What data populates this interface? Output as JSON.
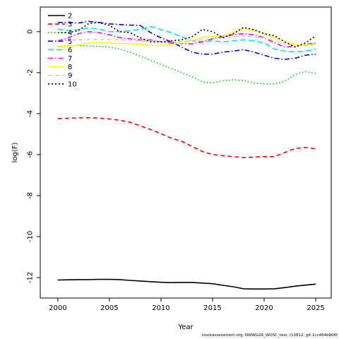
{
  "chart_data": {
    "type": "line",
    "xlabel": "Year",
    "ylabel": "log(F)",
    "xlim": [
      1998.3,
      2026.5
    ],
    "ylim": [
      -13.0,
      1.2
    ],
    "x_ticks": [
      2000,
      2005,
      2010,
      2015,
      2020,
      2025
    ],
    "y_ticks": [
      0,
      -2,
      -4,
      -6,
      -8,
      -10,
      -12
    ],
    "grid": false,
    "legend_position": "top-left",
    "x": [
      2000,
      2001,
      2002,
      2003,
      2004,
      2005,
      2006,
      2007,
      2008,
      2009,
      2010,
      2011,
      2012,
      2013,
      2014,
      2015,
      2016,
      2017,
      2018,
      2019,
      2020,
      2021,
      2022,
      2023,
      2024,
      2025
    ],
    "series": [
      {
        "name": "2",
        "color": "#000000",
        "dash": "solid",
        "width": 1.6,
        "values": [
          -12.12,
          -12.11,
          -12.1,
          -12.1,
          -12.09,
          -12.09,
          -12.1,
          -12.14,
          -12.17,
          -12.2,
          -12.23,
          -12.25,
          -12.24,
          -12.24,
          -12.27,
          -12.3,
          -12.38,
          -12.45,
          -12.55,
          -12.56,
          -12.56,
          -12.55,
          -12.49,
          -12.42,
          -12.37,
          -12.32
        ]
      },
      {
        "name": "3",
        "color": "#ff0000",
        "dash": "6,4",
        "width": 1.6,
        "values": [
          -4.25,
          -4.23,
          -4.21,
          -4.2,
          -4.22,
          -4.26,
          -4.32,
          -4.42,
          -4.6,
          -4.78,
          -4.98,
          -5.2,
          -5.35,
          -5.6,
          -5.85,
          -6.0,
          -6.05,
          -6.1,
          -6.15,
          -6.12,
          -6.1,
          -6.1,
          -5.9,
          -5.7,
          -5.65,
          -5.72
        ]
      },
      {
        "name": "4",
        "color": "#00cc00",
        "dash": "1.5,3",
        "width": 1.6,
        "values": [
          -0.72,
          -0.7,
          -0.68,
          -0.7,
          -0.72,
          -0.75,
          -0.85,
          -1.0,
          -1.2,
          -1.4,
          -1.6,
          -1.8,
          -2.0,
          -2.2,
          -2.45,
          -2.5,
          -2.4,
          -2.35,
          -2.38,
          -2.5,
          -2.55,
          -2.55,
          -2.42,
          -2.1,
          -1.95,
          -2.05
        ]
      },
      {
        "name": "5",
        "color": "#0000ff",
        "dash": "7,3,1.5,3",
        "width": 1.6,
        "values": [
          0.45,
          0.45,
          0.42,
          0.5,
          0.45,
          0.38,
          0.35,
          0.32,
          0.3,
          -0.05,
          -0.3,
          -0.5,
          -0.75,
          -1.0,
          -1.1,
          -1.1,
          -1.0,
          -0.95,
          -0.88,
          -1.0,
          -1.15,
          -1.3,
          -1.35,
          -1.3,
          -1.15,
          -1.1
        ]
      },
      {
        "name": "6",
        "color": "#00e5ee",
        "dash": "8,4",
        "width": 1.6,
        "values": [
          0.12,
          0.05,
          0.1,
          0.18,
          0.12,
          0.0,
          0.0,
          0.05,
          0.1,
          0.25,
          0.1,
          -0.05,
          -0.25,
          -0.45,
          -0.5,
          -0.45,
          -0.5,
          -0.45,
          -0.4,
          -0.45,
          -0.55,
          -0.85,
          -0.95,
          -1.0,
          -0.95,
          -0.85
        ]
      },
      {
        "name": "7",
        "color": "#ff00ff",
        "dash": "7,3,1.5,3",
        "width": 1.6,
        "values": [
          -0.45,
          -0.3,
          -0.1,
          0.0,
          -0.05,
          -0.15,
          -0.3,
          -0.35,
          -0.4,
          -0.4,
          -0.5,
          -0.55,
          -0.58,
          -0.6,
          -0.5,
          -0.35,
          -0.25,
          -0.15,
          -0.1,
          -0.15,
          -0.3,
          -0.55,
          -0.75,
          -0.72,
          -0.62,
          -0.55
        ]
      },
      {
        "name": "8",
        "color": "#ffff00",
        "dash": "solid",
        "width": 1.6,
        "values": [
          -0.75,
          -0.72,
          -0.65,
          -0.55,
          -0.55,
          -0.55,
          -0.58,
          -0.6,
          -0.62,
          -0.68,
          -0.68,
          -0.62,
          -0.55,
          -0.45,
          -0.28,
          -0.25,
          -0.2,
          -0.05,
          0.15,
          0.05,
          -0.1,
          -0.3,
          -0.5,
          -0.65,
          -0.65,
          -0.6
        ]
      },
      {
        "name": "9",
        "color": "#bebebe",
        "dash": "6,4",
        "width": 1.2,
        "values": [
          -0.45,
          -0.42,
          -0.4,
          -0.38,
          -0.38,
          -0.38,
          -0.4,
          -0.42,
          -0.45,
          -0.48,
          -0.5,
          -0.5,
          -0.48,
          -0.45,
          -0.4,
          -0.35,
          -0.3,
          -0.25,
          -0.2,
          -0.25,
          -0.3,
          -0.45,
          -0.6,
          -0.7,
          -0.68,
          -0.62
        ]
      },
      {
        "name": "10",
        "color": "#000000",
        "dash": "2,3",
        "width": 1.6,
        "values": [
          -0.05,
          -0.05,
          0.05,
          0.4,
          0.45,
          0.3,
          0.0,
          -0.05,
          -0.3,
          -0.5,
          -0.5,
          -0.45,
          -0.4,
          -0.25,
          0.1,
          0.0,
          -0.3,
          -0.1,
          0.2,
          0.1,
          -0.1,
          -0.2,
          -0.5,
          -0.75,
          -0.55,
          -0.2
        ]
      }
    ]
  },
  "footer": {
    "text": "stockassessment.org, NWWG26_WOSC_test, r10812, git:1cc464b806f"
  }
}
